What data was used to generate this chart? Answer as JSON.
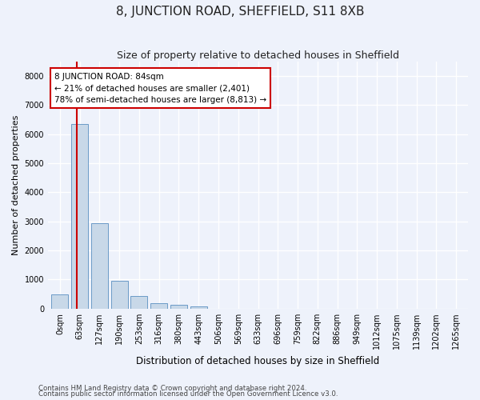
{
  "title": "8, JUNCTION ROAD, SHEFFIELD, S11 8XB",
  "subtitle": "Size of property relative to detached houses in Sheffield",
  "xlabel": "Distribution of detached houses by size in Sheffield",
  "ylabel": "Number of detached properties",
  "footer_line1": "Contains HM Land Registry data © Crown copyright and database right 2024.",
  "footer_line2": "Contains public sector information licensed under the Open Government Licence v3.0.",
  "annotation_title": "8 JUNCTION ROAD: 84sqm",
  "annotation_line1": "← 21% of detached houses are smaller (2,401)",
  "annotation_line2": "78% of semi-detached houses are larger (8,813) →",
  "bar_color": "#c8d8e8",
  "bar_edge_color": "#5a8fc0",
  "marker_line_color": "#cc0000",
  "annotation_box_edge_color": "#cc0000",
  "background_color": "#eef2fb",
  "grid_color": "#ffffff",
  "categories": [
    "0sqm",
    "63sqm",
    "127sqm",
    "190sqm",
    "253sqm",
    "316sqm",
    "380sqm",
    "443sqm",
    "506sqm",
    "569sqm",
    "633sqm",
    "696sqm",
    "759sqm",
    "822sqm",
    "886sqm",
    "949sqm",
    "1012sqm",
    "1075sqm",
    "1139sqm",
    "1202sqm",
    "1265sqm"
  ],
  "values": [
    480,
    6350,
    2950,
    950,
    430,
    200,
    130,
    90,
    0,
    0,
    0,
    0,
    0,
    0,
    0,
    0,
    0,
    0,
    0,
    0,
    0
  ],
  "ylim": [
    0,
    8500
  ],
  "yticks": [
    0,
    1000,
    2000,
    3000,
    4000,
    5000,
    6000,
    7000,
    8000
  ],
  "marker_bar_index": 1,
  "figsize": [
    6.0,
    5.0
  ],
  "dpi": 100
}
